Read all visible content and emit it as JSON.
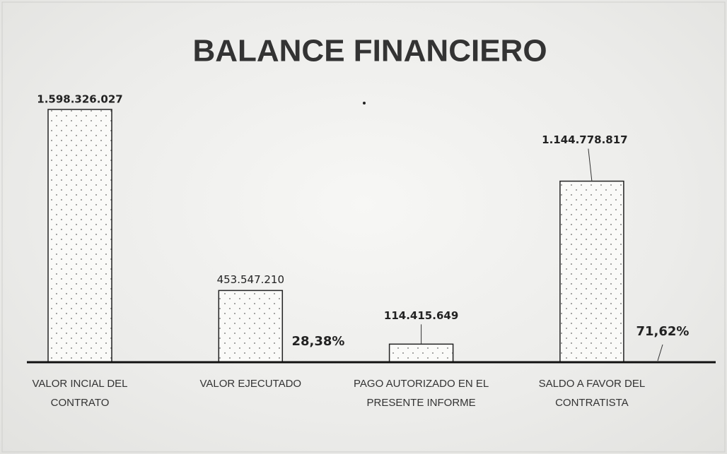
{
  "chart_data": {
    "type": "bar",
    "title": "BALANCE FINANCIERO",
    "categories": [
      "VALOR INCIAL DEL CONTRATO",
      "VALOR EJECUTADO",
      "PAGO AUTORIZADO EN EL PRESENTE INFORME",
      "SALDO A FAVOR DEL CONTRATISTA"
    ],
    "values": [
      1598326027,
      453547210,
      114415649,
      1144778817
    ],
    "value_labels": [
      "1.598.326.027",
      "453.547.210",
      "114.415.649",
      "1.144.778.817"
    ],
    "annotations": [
      "28,38%",
      "71,62%"
    ],
    "color": "#ffffff"
  }
}
